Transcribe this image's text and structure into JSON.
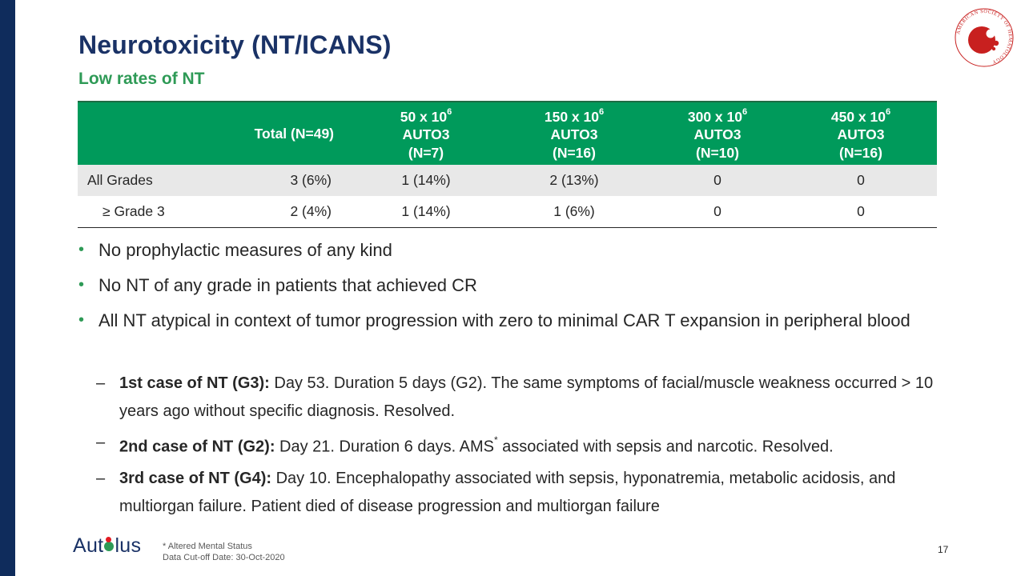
{
  "slide": {
    "title": "Neurotoxicity (NT/ICANS)",
    "subtitle": "Low rates of NT",
    "page_number": "17"
  },
  "table": {
    "header": {
      "blank": "",
      "total": "Total (N=49)",
      "cols": [
        {
          "dose_prefix": "50 x 10",
          "exp": "6",
          "product": "AUTO3",
          "n": "(N=7)"
        },
        {
          "dose_prefix": "150 x 10",
          "exp": "6",
          "product": "AUTO3",
          "n": "(N=16)"
        },
        {
          "dose_prefix": "300 x 10",
          "exp": "6",
          "product": "AUTO3",
          "n": "(N=10)"
        },
        {
          "dose_prefix": "450 x 10",
          "exp": "6",
          "product": "AUTO3",
          "n": "(N=16)"
        }
      ]
    },
    "rows": [
      {
        "label": "All Grades",
        "total": "3 (6%)",
        "cells": [
          "1 (14%)",
          "2 (13%)",
          "0",
          "0"
        ]
      },
      {
        "label": "≥ Grade 3",
        "total": "2 (4%)",
        "cells": [
          "1 (14%)",
          "1 (6%)",
          "0",
          "0"
        ]
      }
    ]
  },
  "bullets": [
    "No prophylactic measures of any kind",
    "No NT of any grade in patients that achieved CR",
    "All NT atypical in context of tumor progression with zero to minimal CAR T expansion in peripheral blood"
  ],
  "sub_bullets": [
    {
      "bold": "1st case of NT (G3):",
      "text": " Day 53.  Duration 5 days (G2).  The same symptoms of facial/muscle weakness occurred > 10 years ago without specific diagnosis. Resolved."
    },
    {
      "bold": "2nd case of NT (G2):",
      "text": " Day 21.  Duration 6 days.  AMS",
      "sup": "*",
      "text_after": " associated with sepsis and narcotic. Resolved."
    },
    {
      "bold": "3rd case of NT (G4):",
      "text": " Day 10.  Encephalopathy associated with sepsis, hyponatremia, metabolic acidosis, and multiorgan failure. Patient died of disease progression and multiorgan failure"
    }
  ],
  "bullet_marker": "•",
  "dash_marker": "–",
  "footer": {
    "brand": {
      "pre": "Aut",
      "post": "lus"
    },
    "footnote_line1": "* Altered Mental Status",
    "footnote_line2": "Data Cut-off Date: 30-Oct-2020"
  },
  "logo": {
    "ring_text": "AMERICAN SOCIETY OF HEMATOLOGY",
    "color": "#c8201f"
  },
  "colors": {
    "navy": "#1a3266",
    "green": "#2e9a56",
    "header_green": "#009a5b",
    "left_bar": "#0f2c5c"
  }
}
